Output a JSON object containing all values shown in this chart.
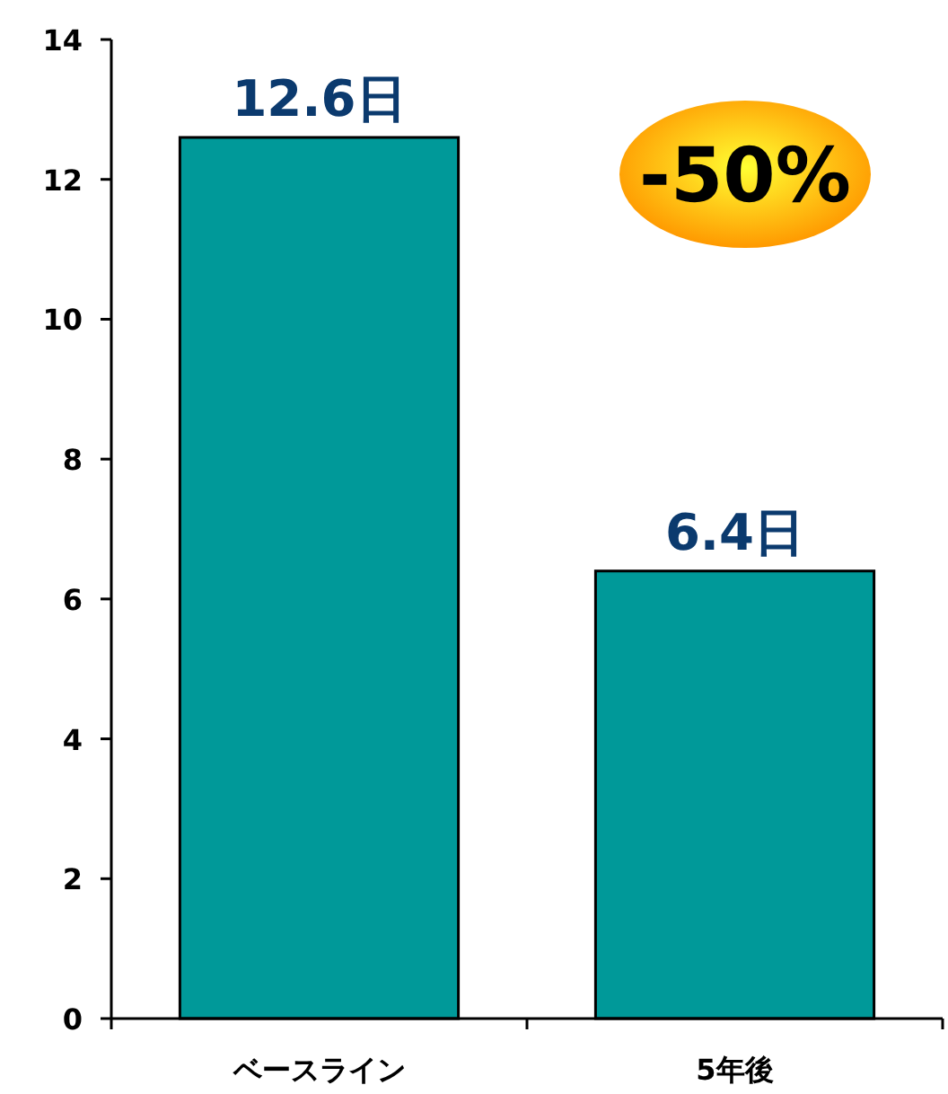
{
  "chart_data": {
    "type": "bar",
    "categories": [
      "ベースライン",
      "5年後"
    ],
    "values": [
      12.6,
      6.4
    ],
    "value_labels": [
      "12.6日",
      "6.4日"
    ],
    "color": "#009999",
    "ylim": [
      0,
      14
    ],
    "yticks": [
      0,
      2,
      4,
      6,
      8,
      10,
      12,
      14
    ],
    "grid": false,
    "annotations": [
      "-50%"
    ]
  }
}
